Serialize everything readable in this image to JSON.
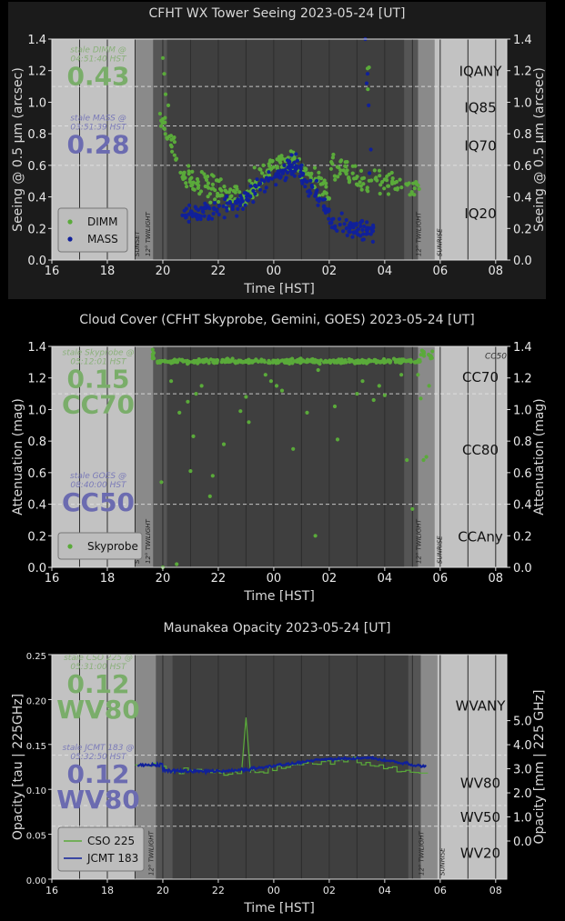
{
  "colors": {
    "page_bg": "#000000",
    "panel_bg": "#1b1b1b",
    "day": "#c2c2c2",
    "twilight": "#8a8a8a",
    "night": "#555555",
    "deep_night": "#3f3f3f",
    "text": "#d8d8d8",
    "axis_text": "#e8e8e8",
    "green": "#5aaa3a",
    "blue": "#10209a",
    "big_green": "#7aad6a",
    "big_blue": "#6b6bb0",
    "small_green": "#8ab07a",
    "small_blue": "#7a7ab8"
  },
  "chart_data": [
    {
      "id": "seeing",
      "type": "scatter",
      "title": "CFHT WX Tower Seeing 2023-05-24 [UT]",
      "xlabel": "Time [HST]",
      "ylabel": "Seeing @ 0.5 μm (arcsec)",
      "ylabel_right": "Seeing @ 0.5 μm (arcsec)",
      "xlim": [
        16,
        32.4
      ],
      "ylim": [
        0,
        1.4
      ],
      "xticks": [
        "16",
        "18",
        "20",
        "22",
        "00",
        "02",
        "04",
        "06",
        "08"
      ],
      "yticks": [
        "0.0",
        "0.2",
        "0.4",
        "0.6",
        "0.8",
        "1.0",
        "1.2",
        "1.4"
      ],
      "yticks_right": [
        "0.0",
        "0.2",
        "0.4",
        "0.6",
        "0.8",
        "1.0",
        "1.2",
        "1.4"
      ],
      "shading": {
        "sunset": 19.0,
        "twi_end": 19.65,
        "deep_start": 20.15,
        "deep_end": 28.7,
        "twi_start": 29.2,
        "sunrise": 29.8
      },
      "hlines": [
        1.1,
        0.85,
        0.6
      ],
      "events": {
        "sunset": "SUNSET",
        "evening_twilight": "12° TWILIGHT",
        "morning_twilight": "12° TWILIGHT",
        "sunrise": "SUNRISE"
      },
      "categories": [
        {
          "label": "IQANY",
          "y": 1.2
        },
        {
          "label": "IQ85",
          "y": 0.97
        },
        {
          "label": "IQ70",
          "y": 0.73
        },
        {
          "label": "IQ20",
          "y": 0.3
        }
      ],
      "stale": [
        {
          "note1": "stale DIMM @",
          "note2": "04:51:40 HST",
          "value": "0.43",
          "color": "green",
          "ny": 1.35
        },
        {
          "note1": "stale MASS @",
          "note2": "03:51:39 HST",
          "value": "0.28",
          "color": "blue",
          "ny": 0.92
        }
      ],
      "legend": {
        "position": "lower-left",
        "entries": [
          {
            "label": "DIMM",
            "color": "green",
            "marker": "dot"
          },
          {
            "label": "MASS",
            "color": "blue",
            "marker": "dot"
          }
        ]
      },
      "series": [
        {
          "name": "DIMM",
          "color": "green",
          "gen": {
            "kind": "dimm_seeing"
          }
        },
        {
          "name": "MASS",
          "color": "blue",
          "gen": {
            "kind": "mass_seeing"
          }
        }
      ]
    },
    {
      "id": "cloud",
      "type": "scatter",
      "title": "Cloud Cover (CFHT Skyprobe, Gemini, GOES) 2023-05-24 [UT]",
      "xlabel": "Time [HST]",
      "ylabel": "Attenuation (mag)",
      "ylabel_right": "Attenuation (mag)",
      "xlim": [
        16,
        32.4
      ],
      "ylim": [
        1.4,
        0
      ],
      "xticks": [
        "16",
        "18",
        "20",
        "22",
        "00",
        "02",
        "04",
        "06",
        "08"
      ],
      "yticks": [
        "0.0",
        "0.2",
        "0.4",
        "0.6",
        "0.8",
        "1.0",
        "1.2",
        "1.4"
      ],
      "yticks_right": [
        "0.0",
        "0.2",
        "0.4",
        "0.6",
        "0.8",
        "1.0",
        "1.2",
        "1.4"
      ],
      "shading": {
        "sunset": 19.0,
        "twi_end": 19.65,
        "deep_start": 20.15,
        "deep_end": 28.7,
        "twi_start": 29.2,
        "sunrise": 29.8
      },
      "hlines": [
        0.3,
        1.0
      ],
      "events": {
        "sunset": "SUNSET",
        "evening_twilight": "12° TWILIGHT",
        "morning_twilight": "12° TWILIGHT",
        "sunrise": "SUNRISE"
      },
      "categories": [
        {
          "label": "CC50",
          "y": 0.06,
          "small": true
        },
        {
          "label": "CC70",
          "y": 0.19
        },
        {
          "label": "CC80",
          "y": 0.65
        },
        {
          "label": "CCAny",
          "y": 1.2
        }
      ],
      "stale": [
        {
          "note1": "stale Skyprobe @",
          "note2": "05:12:01 HST",
          "value": "0.15",
          "value2": "CC70",
          "color": "green",
          "ny": 0.02
        },
        {
          "note1": "stale GOES @",
          "note2": "08:40:00 HST",
          "value": "CC50",
          "color": "blue",
          "ny": 0.8
        }
      ],
      "legend": {
        "position": "lower-left",
        "entries": [
          {
            "label": "Skyprobe",
            "color": "green",
            "marker": "dot"
          }
        ]
      },
      "series": [
        {
          "name": "Skyprobe",
          "color": "green",
          "gen": {
            "kind": "skyprobe"
          }
        }
      ]
    },
    {
      "id": "opacity",
      "type": "line",
      "title": "Maunakea Opacity 2023-05-24 [UT]",
      "xlabel": "Time [HST]",
      "ylabel": "Opacity [tau | 225GHz]",
      "ylabel_right": "Opacity [mm | 225 GHz]",
      "xlim": [
        16,
        32.4
      ],
      "ylim": [
        0,
        0.25
      ],
      "xticks": [
        "16",
        "18",
        "20",
        "22",
        "00",
        "02",
        "04",
        "06",
        "08"
      ],
      "yticks": [
        "0.00",
        "0.05",
        "0.10",
        "0.15",
        "0.20",
        "0.25"
      ],
      "yticks_right": [
        "0.0",
        "1.0",
        "2.0",
        "3.0",
        "4.0",
        "5.0"
      ],
      "yticks_right_vals": [
        0.0,
        1.0,
        2.0,
        3.0,
        4.0,
        5.0
      ],
      "right_map": {
        "y0": 0.0425,
        "slope": 0.0478
      },
      "shading": {
        "sunset": 19.0,
        "twi_end": 19.75,
        "deep_start": 20.35,
        "deep_end": 28.85,
        "twi_start": 29.3,
        "sunrise": 29.9
      },
      "hlines": [
        0.138,
        0.082,
        0.059
      ],
      "events": {
        "evening_twilight": "12° TWILIGHT",
        "morning_twilight": "12° TWILIGHT",
        "sunrise": "SUNRISE"
      },
      "categories": [
        {
          "label": "WVANY",
          "y": 0.194
        },
        {
          "label": "WV80",
          "y": 0.108
        },
        {
          "label": "WV50",
          "y": 0.07
        },
        {
          "label": "WV20",
          "y": 0.03
        }
      ],
      "stale": [
        {
          "note1": "stale CSO 225 @",
          "note2": "05:31:00 HST",
          "value": "0.12",
          "value2": "WV80",
          "color": "green",
          "ny": 0.25
        },
        {
          "note1": "stale JCMT 183 @",
          "note2": "05:32:50 HST",
          "value": "0.12",
          "value2": "WV80",
          "color": "blue",
          "ny": 0.15
        }
      ],
      "legend": {
        "position": "lower-left",
        "entries": [
          {
            "label": "CSO 225",
            "color": "green",
            "marker": "line"
          },
          {
            "label": "JCMT 183",
            "color": "blue",
            "marker": "line"
          }
        ]
      },
      "series": [
        {
          "name": "CSO 225",
          "color": "green",
          "gen": {
            "kind": "cso"
          }
        },
        {
          "name": "JCMT 183",
          "color": "blue",
          "gen": {
            "kind": "jcmt"
          }
        }
      ]
    }
  ]
}
